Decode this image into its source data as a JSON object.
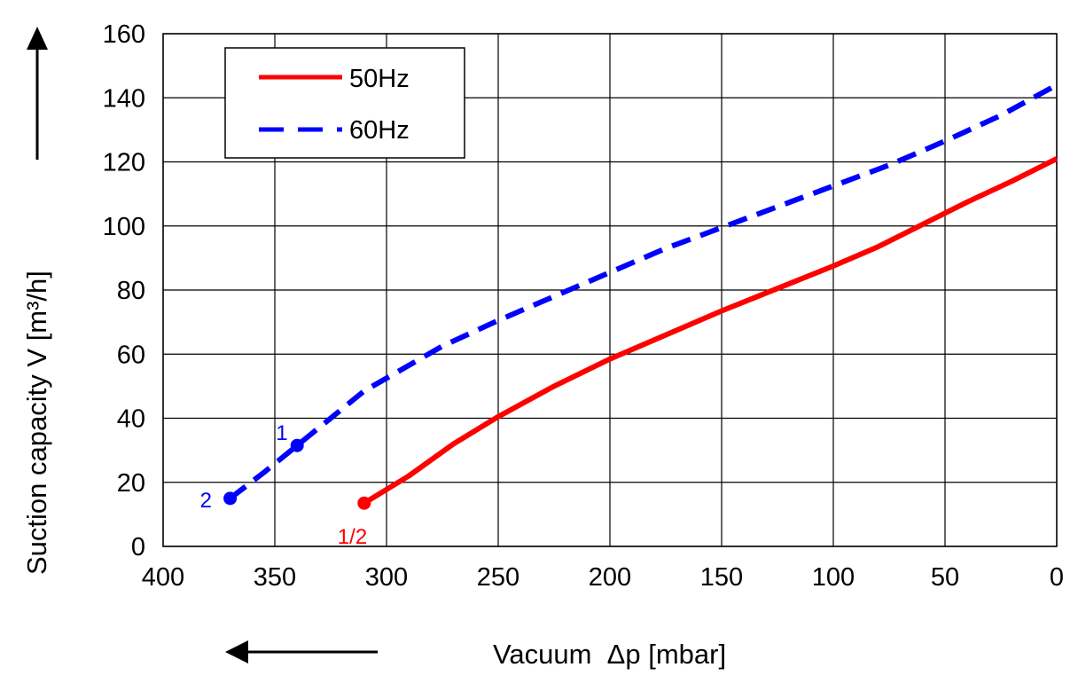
{
  "chart_data": {
    "type": "line",
    "xlabel": "Vacuum  Δp [mbar]",
    "ylabel": "Suction capacity V [m³/h]",
    "xlim": [
      400,
      0
    ],
    "ylim": [
      0,
      160
    ],
    "x_ticks": [
      "400",
      "350",
      "300",
      "250",
      "200",
      "150",
      "100",
      "50",
      "0"
    ],
    "y_ticks": [
      "0",
      "20",
      "40",
      "60",
      "80",
      "100",
      "120",
      "140",
      "160"
    ],
    "grid": true,
    "legend_position": "top-left",
    "series": [
      {
        "name": "50Hz",
        "color": "#ff0000",
        "style": "solid",
        "x": [
          310,
          290,
          270,
          250,
          225,
          200,
          175,
          150,
          125,
          100,
          80,
          60,
          40,
          20,
          0
        ],
        "y": [
          13.5,
          22,
          32,
          40.5,
          50,
          58.5,
          66,
          73.5,
          80.5,
          87.5,
          93.5,
          100.5,
          107.5,
          114,
          121
        ]
      },
      {
        "name": "60Hz",
        "color": "#0000ff",
        "style": "dashed",
        "x": [
          370,
          355,
          340,
          325,
          310,
          290,
          275,
          250,
          225,
          200,
          175,
          150,
          125,
          100,
          75,
          50,
          25,
          0
        ],
        "y": [
          15,
          23,
          31.5,
          40,
          48.5,
          56.5,
          62.5,
          70.5,
          78,
          85.5,
          93,
          99.5,
          106,
          112.5,
          119,
          126.5,
          134.5,
          144
        ]
      }
    ],
    "annotations": [
      {
        "text": "1",
        "x": 340,
        "y": 31.5,
        "color": "#0000ff",
        "marker": true
      },
      {
        "text": "2",
        "x": 370,
        "y": 15,
        "color": "#0000ff",
        "marker": true
      },
      {
        "text": "1/2",
        "x": 310,
        "y": 13.5,
        "color": "#ff0000",
        "marker": true
      }
    ]
  }
}
